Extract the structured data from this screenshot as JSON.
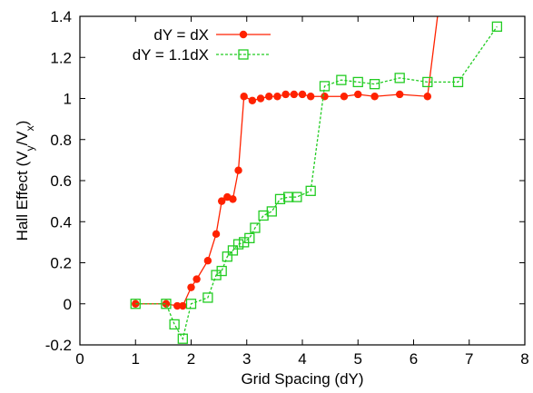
{
  "chart_data": {
    "type": "line",
    "xlabel": "Grid Spacing (dY)",
    "ylabel_parts": [
      "Hall Effect (V",
      "y",
      "/V",
      "x",
      ")"
    ],
    "xlim": [
      0,
      8
    ],
    "ylim": [
      -0.2,
      1.4
    ],
    "x_ticks": [
      0,
      1,
      2,
      3,
      4,
      5,
      6,
      7,
      8
    ],
    "y_ticks": [
      -0.2,
      0,
      0.2,
      0.4,
      0.6,
      0.8,
      1,
      1.2,
      1.4
    ],
    "x_tick_labels": [
      "0",
      "1",
      "2",
      "3",
      "4",
      "5",
      "6",
      "7",
      "8"
    ],
    "y_tick_labels": [
      "-0.2",
      "0",
      "0.2",
      "0.4",
      "0.6",
      "0.8",
      "1",
      "1.2",
      "1.4"
    ],
    "grid": false,
    "legend_position": "top-left",
    "series": [
      {
        "name": "dY = dX",
        "color": "#ff2200",
        "marker": "filled-circle",
        "line_style": "solid",
        "x": [
          1.0,
          1.55,
          1.75,
          1.85,
          2.0,
          2.1,
          2.3,
          2.45,
          2.55,
          2.65,
          2.75,
          2.85,
          2.95,
          3.1,
          3.25,
          3.4,
          3.55,
          3.7,
          3.85,
          4.0,
          4.15,
          4.4,
          4.75,
          5.0,
          5.3,
          5.75,
          6.25,
          6.5
        ],
        "y": [
          0.0,
          0.0,
          -0.01,
          -0.01,
          0.08,
          0.12,
          0.21,
          0.34,
          0.5,
          0.52,
          0.51,
          0.65,
          1.01,
          0.99,
          1.0,
          1.01,
          1.01,
          1.02,
          1.02,
          1.02,
          1.01,
          1.01,
          1.01,
          1.02,
          1.01,
          1.02,
          1.01,
          1.55
        ],
        "marker_count": 27
      },
      {
        "name": "dY = 1.1dX",
        "color": "#22cc22",
        "marker": "open-square",
        "line_style": "dashed",
        "x": [
          1.0,
          1.55,
          1.7,
          1.85,
          2.0,
          2.3,
          2.45,
          2.55,
          2.65,
          2.75,
          2.85,
          2.95,
          3.05,
          3.15,
          3.3,
          3.45,
          3.6,
          3.75,
          3.9,
          4.15,
          4.4,
          4.7,
          5.0,
          5.3,
          5.75,
          6.25,
          6.8,
          7.5
        ],
        "y": [
          0.0,
          0.0,
          -0.1,
          -0.17,
          0.0,
          0.03,
          0.14,
          0.16,
          0.23,
          0.26,
          0.29,
          0.3,
          0.32,
          0.37,
          0.43,
          0.45,
          0.51,
          0.52,
          0.52,
          0.55,
          1.06,
          1.09,
          1.08,
          1.07,
          1.1,
          1.08,
          1.08,
          1.35
        ]
      }
    ]
  }
}
